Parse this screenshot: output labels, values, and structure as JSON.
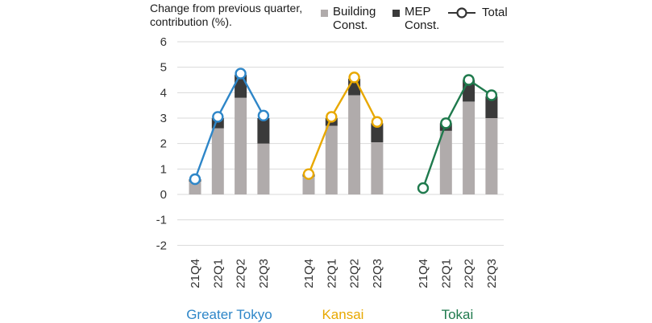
{
  "colors": {
    "building": "#b0abab",
    "mep": "#3a3a3a",
    "grid": "#d9d9d9",
    "tick_text": "#333333"
  },
  "chart_data": {
    "type": "bar",
    "stacked": true,
    "title": "",
    "ylabel_lines": [
      "Change from previous quarter,",
      "contribution (%)."
    ],
    "ylim": [
      -2,
      6
    ],
    "yticks": [
      6,
      5,
      4,
      3,
      2,
      1,
      0,
      -1,
      -2
    ],
    "grid": true,
    "legend": [
      {
        "name": "Building Const.",
        "lines": [
          "Building",
          "Const."
        ],
        "kind": "bar",
        "color": "#b0abab"
      },
      {
        "name": "MEP Const.",
        "lines": [
          "MEP",
          "Const."
        ],
        "kind": "bar",
        "color": "#3a3a3a"
      },
      {
        "name": "Total",
        "lines": [
          "Total"
        ],
        "kind": "line-marker",
        "color": "#333333"
      }
    ],
    "legend_placement": "top-right",
    "groups": [
      {
        "name": "Greater Tokyo",
        "color": "#2e86c8",
        "categories": [
          "21Q4",
          "22Q1",
          "22Q2",
          "22Q3"
        ],
        "building": [
          0.5,
          2.6,
          3.8,
          2.0
        ],
        "mep": [
          0.1,
          0.4,
          0.9,
          1.0
        ],
        "total": [
          0.6,
          3.05,
          4.75,
          3.1
        ]
      },
      {
        "name": "Kansai",
        "color": "#e8a800",
        "categories": [
          "21Q4",
          "22Q1",
          "22Q2",
          "22Q3"
        ],
        "building": [
          0.7,
          2.7,
          3.9,
          2.05
        ],
        "mep": [
          0.1,
          0.3,
          0.65,
          0.75
        ],
        "total": [
          0.8,
          3.05,
          4.6,
          2.85
        ]
      },
      {
        "name": "Tokai",
        "color": "#1f7a4d",
        "categories": [
          "21Q4",
          "22Q1",
          "22Q2",
          "22Q3"
        ],
        "building": [
          0.0,
          2.5,
          3.65,
          3.0
        ],
        "mep": [
          0.0,
          0.3,
          0.85,
          0.85
        ],
        "total": [
          0.25,
          2.8,
          4.5,
          3.9
        ]
      }
    ]
  }
}
